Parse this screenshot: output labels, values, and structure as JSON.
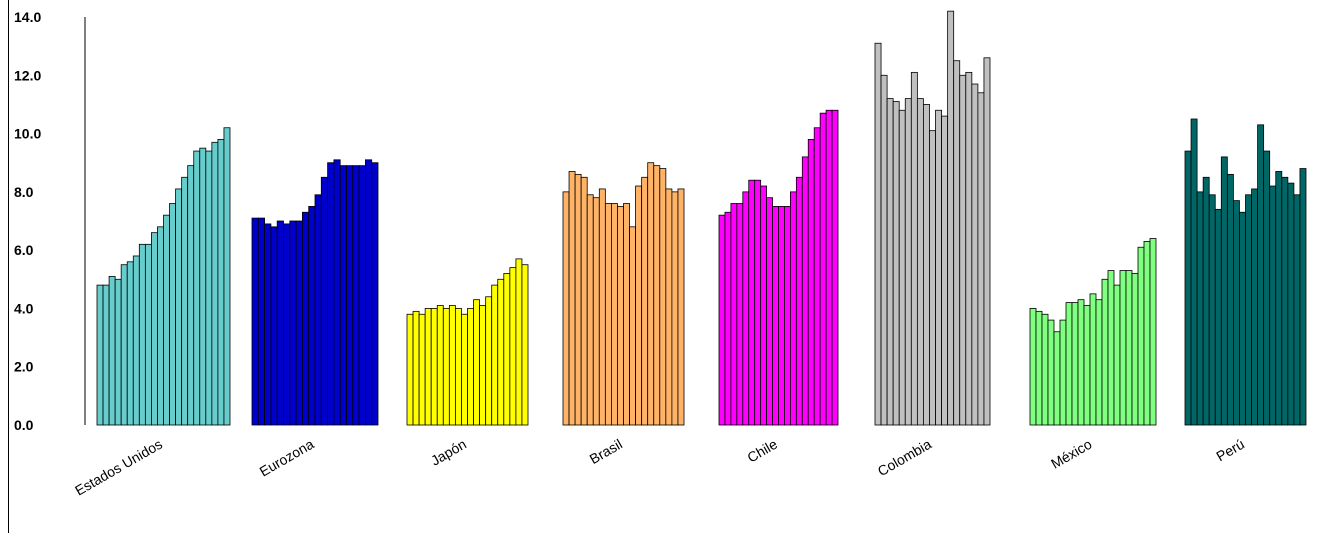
{
  "chart_data": {
    "type": "bar",
    "title": "",
    "xlabel": "",
    "ylabel": "",
    "ylim": [
      0,
      14
    ],
    "yticks": [
      "0.0",
      "2.0",
      "4.0",
      "6.0",
      "8.0",
      "10.0",
      "12.0",
      "14.0"
    ],
    "grid": false,
    "legend": "none",
    "groups": [
      {
        "name": "Estados Unidos",
        "color": "#66CCCC",
        "values": [
          4.8,
          4.8,
          5.1,
          5.0,
          5.5,
          5.6,
          5.8,
          6.2,
          6.2,
          6.6,
          6.8,
          7.2,
          7.6,
          8.1,
          8.5,
          8.9,
          9.4,
          9.5,
          9.4,
          9.7,
          9.8,
          10.2
        ]
      },
      {
        "name": "Eurozona",
        "color": "#0000CC",
        "values": [
          7.1,
          7.1,
          6.9,
          6.8,
          7.0,
          6.9,
          7.0,
          7.0,
          7.3,
          7.5,
          7.9,
          8.5,
          9.0,
          9.1,
          8.9,
          8.9,
          8.9,
          8.9,
          9.1,
          9.0
        ]
      },
      {
        "name": "Japón",
        "color": "#FFFF00",
        "values": [
          3.8,
          3.9,
          3.8,
          4.0,
          4.0,
          4.1,
          4.0,
          4.1,
          4.0,
          3.8,
          4.0,
          4.3,
          4.1,
          4.4,
          4.8,
          5.0,
          5.2,
          5.4,
          5.7,
          5.5
        ]
      },
      {
        "name": "Brasil",
        "color": "#FFB366",
        "values": [
          8.0,
          8.7,
          8.6,
          8.5,
          7.9,
          7.8,
          8.1,
          7.6,
          7.6,
          7.5,
          7.6,
          6.8,
          8.2,
          8.5,
          9.0,
          8.9,
          8.8,
          8.1,
          8.0,
          8.1
        ]
      },
      {
        "name": "Chile",
        "color": "#FF00FF",
        "values": [
          7.2,
          7.3,
          7.6,
          7.6,
          8.0,
          8.4,
          8.4,
          8.2,
          7.8,
          7.5,
          7.5,
          7.5,
          8.0,
          8.5,
          9.2,
          9.8,
          10.2,
          10.7,
          10.8,
          10.8
        ]
      },
      {
        "name": "Colombia",
        "color": "#C0C0C0",
        "values": [
          13.1,
          12.0,
          11.2,
          11.1,
          10.8,
          11.2,
          12.1,
          11.2,
          11.0,
          10.1,
          10.8,
          10.6,
          14.2,
          12.5,
          12.0,
          12.1,
          11.7,
          11.4,
          12.6
        ]
      },
      {
        "name": "México",
        "color": "#80FF80",
        "values": [
          4.0,
          3.9,
          3.8,
          3.6,
          3.2,
          3.6,
          4.2,
          4.2,
          4.3,
          4.1,
          4.5,
          4.3,
          5.0,
          5.3,
          4.8,
          5.3,
          5.3,
          5.2,
          6.1,
          6.3,
          6.4
        ]
      },
      {
        "name": "Perú",
        "color": "#006666",
        "values": [
          9.4,
          10.5,
          8.0,
          8.5,
          7.9,
          7.4,
          9.2,
          8.6,
          7.7,
          7.3,
          7.9,
          8.1,
          10.3,
          9.4,
          8.2,
          8.7,
          8.5,
          8.3,
          7.9,
          8.8
        ]
      }
    ]
  }
}
